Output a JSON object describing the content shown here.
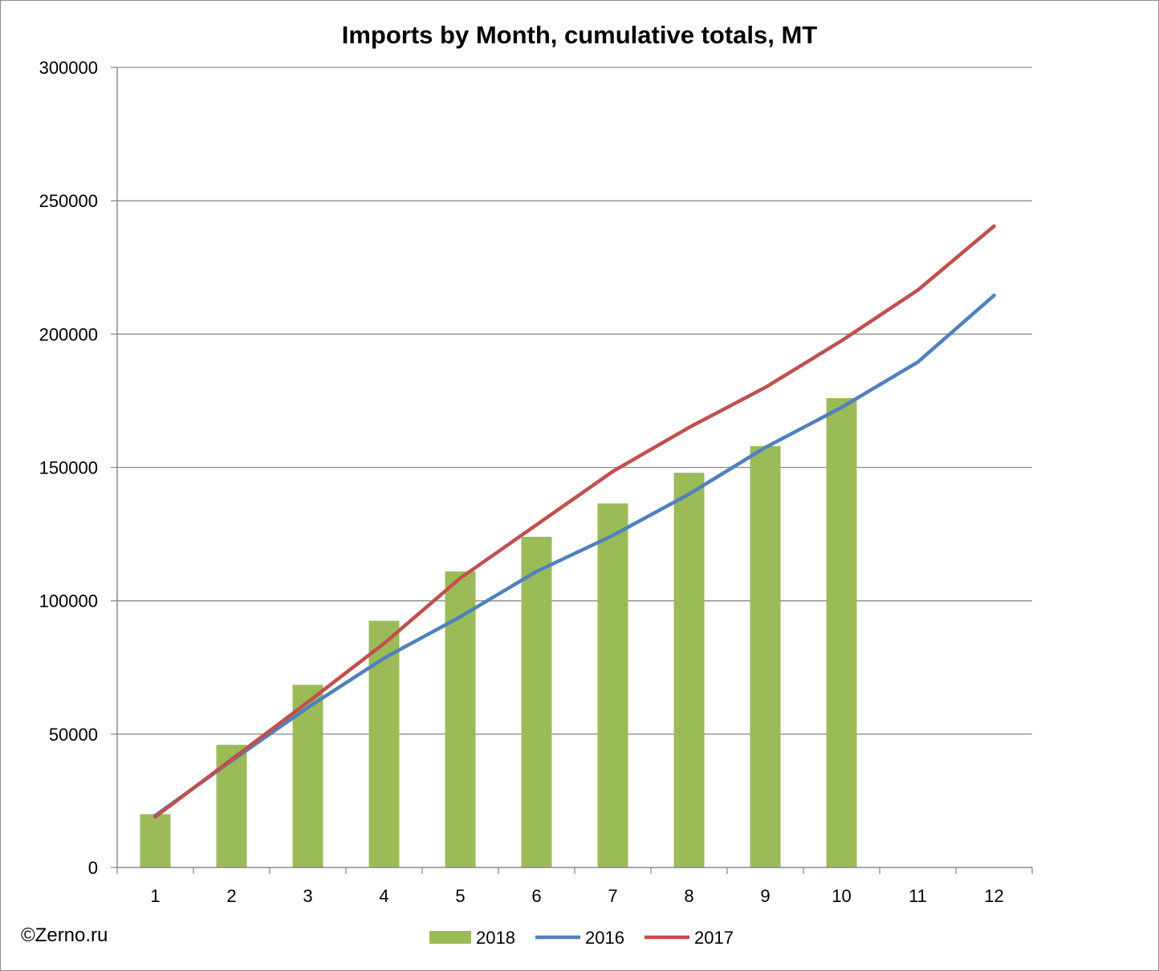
{
  "chart_data": {
    "type": "bar+line",
    "title": "Imports by Month, cumulative totals, MT",
    "categories": [
      "1",
      "2",
      "3",
      "4",
      "5",
      "6",
      "7",
      "8",
      "9",
      "10",
      "11",
      "12"
    ],
    "ylim": [
      0,
      300000
    ],
    "yticks": [
      "0",
      "50000",
      "100000",
      "150000",
      "200000",
      "250000",
      "300000"
    ],
    "grid": true,
    "legend_position": "bottom",
    "series": [
      {
        "name": "2018",
        "kind": "bar",
        "color": "#9bbb59",
        "values": [
          20000,
          46000,
          68500,
          92500,
          111000,
          124000,
          136500,
          148000,
          158000,
          176000,
          null,
          null
        ]
      },
      {
        "name": "2016",
        "kind": "line",
        "color": "#4f81bd",
        "values": [
          19500,
          40000,
          60000,
          78500,
          94000,
          111000,
          124500,
          140000,
          157500,
          172500,
          189500,
          214500
        ]
      },
      {
        "name": "2017",
        "kind": "line",
        "color": "#c0504d",
        "values": [
          19000,
          40500,
          62000,
          84000,
          108500,
          128500,
          148500,
          165000,
          180000,
          197500,
          216500,
          240500
        ]
      }
    ]
  },
  "copyright": "©Zerno.ru"
}
